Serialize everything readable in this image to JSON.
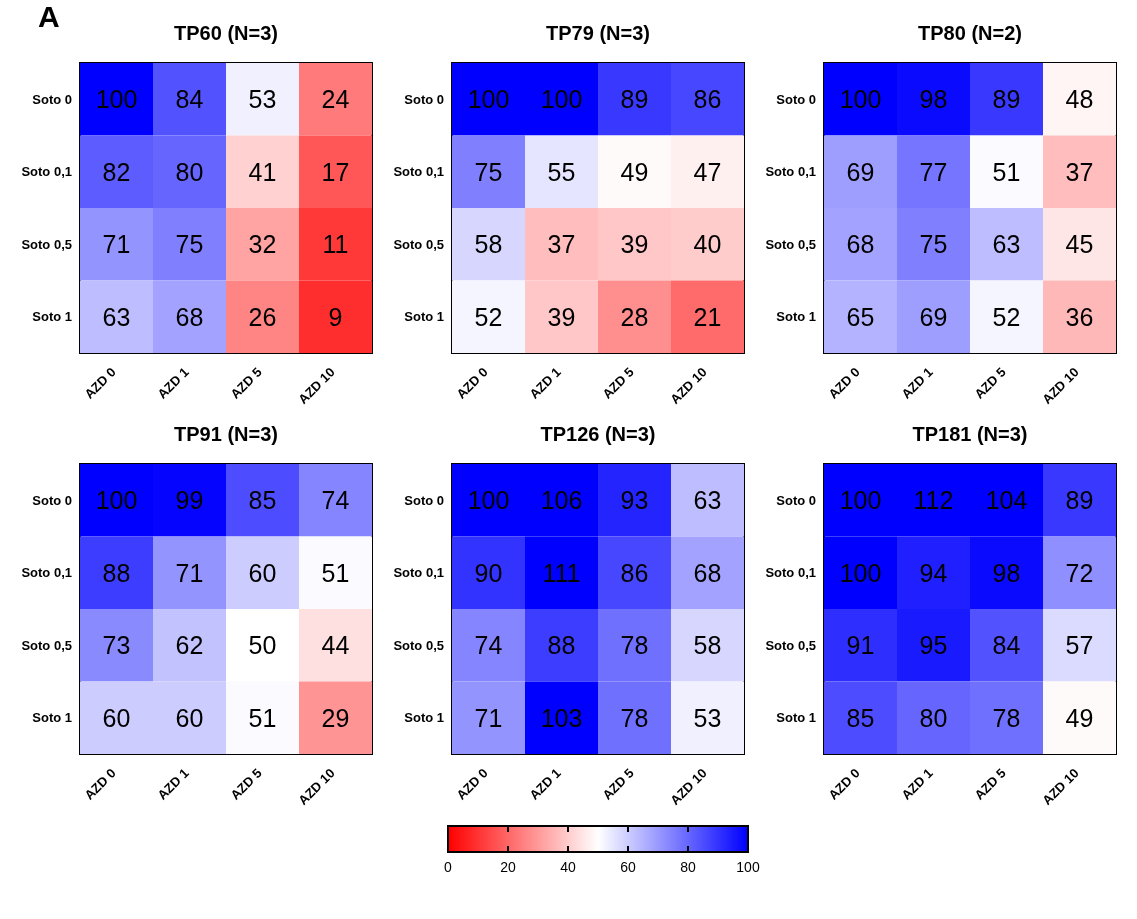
{
  "chart_data": [
    {
      "type": "heatmap",
      "title": "TP60 (N=3)",
      "annotations": [
        "A"
      ],
      "categories": [
        "AZD 0",
        "AZD 1",
        "AZD 5",
        "AZD 10"
      ],
      "y_categories": [
        "Soto 0",
        "Soto 0,1",
        "Soto 0,5",
        "Soto 1"
      ],
      "clim": [
        0,
        100
      ],
      "cticks": [
        0,
        20,
        40,
        60,
        80,
        100
      ],
      "data_labels": true,
      "cells": [
        [
          100,
          84,
          53,
          24
        ],
        [
          82,
          80,
          41,
          17
        ],
        [
          71,
          75,
          32,
          11
        ],
        [
          63,
          68,
          26,
          9
        ]
      ]
    },
    {
      "type": "heatmap",
      "title": "TP79 (N=3)",
      "categories": [
        "AZD 0",
        "AZD 1",
        "AZD 5",
        "AZD 10"
      ],
      "y_categories": [
        "Soto 0",
        "Soto 0,1",
        "Soto 0,5",
        "Soto 1"
      ],
      "data_labels": true,
      "cells": [
        [
          100,
          100,
          89,
          86
        ],
        [
          75,
          55,
          49,
          47
        ],
        [
          58,
          37,
          39,
          40
        ],
        [
          52,
          39,
          28,
          21
        ]
      ]
    },
    {
      "type": "heatmap",
      "title": "TP80 (N=2)",
      "categories": [
        "AZD 0",
        "AZD 1",
        "AZD 5",
        "AZD 10"
      ],
      "y_categories": [
        "Soto 0",
        "Soto 0,1",
        "Soto 0,5",
        "Soto 1"
      ],
      "data_labels": true,
      "cells": [
        [
          100,
          98,
          89,
          48
        ],
        [
          69,
          77,
          51,
          37
        ],
        [
          68,
          75,
          63,
          45
        ],
        [
          65,
          69,
          52,
          36
        ]
      ]
    },
    {
      "type": "heatmap",
      "title": "TP91 (N=3)",
      "categories": [
        "AZD 0",
        "AZD 1",
        "AZD 5",
        "AZD 10"
      ],
      "y_categories": [
        "Soto 0",
        "Soto 0,1",
        "Soto 0,5",
        "Soto 1"
      ],
      "data_labels": true,
      "cells": [
        [
          100,
          99,
          85,
          74
        ],
        [
          88,
          71,
          60,
          51
        ],
        [
          73,
          62,
          50,
          44
        ],
        [
          60,
          60,
          51,
          29
        ]
      ]
    },
    {
      "type": "heatmap",
      "title": "TP126 (N=3)",
      "categories": [
        "AZD 0",
        "AZD 1",
        "AZD 5",
        "AZD 10"
      ],
      "y_categories": [
        "Soto 0",
        "Soto 0,1",
        "Soto 0,5",
        "Soto 1"
      ],
      "data_labels": true,
      "cells": [
        [
          100,
          106,
          93,
          63
        ],
        [
          90,
          111,
          86,
          68
        ],
        [
          74,
          88,
          78,
          58
        ],
        [
          71,
          103,
          78,
          53
        ]
      ]
    },
    {
      "type": "heatmap",
      "title": "TP181 (N=3)",
      "categories": [
        "AZD 0",
        "AZD 1",
        "AZD 5",
        "AZD 10"
      ],
      "y_categories": [
        "Soto 0",
        "Soto 0,1",
        "Soto 0,5",
        "Soto 1"
      ],
      "data_labels": true,
      "cells": [
        [
          100,
          112,
          104,
          89
        ],
        [
          100,
          94,
          98,
          72
        ],
        [
          91,
          95,
          84,
          57
        ],
        [
          85,
          80,
          78,
          49
        ]
      ]
    }
  ]
}
